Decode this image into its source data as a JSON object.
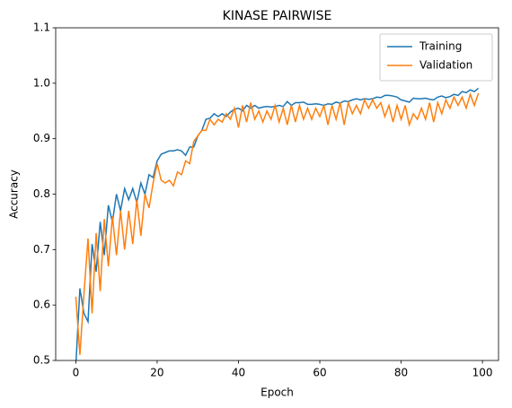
{
  "chart_data": {
    "type": "line",
    "title": "KINASE PAIRWISE",
    "xlabel": "Epoch",
    "ylabel": "Accuracy",
    "x": [
      0,
      1,
      2,
      3,
      4,
      5,
      6,
      7,
      8,
      9,
      10,
      11,
      12,
      13,
      14,
      15,
      16,
      17,
      18,
      19,
      20,
      21,
      22,
      23,
      24,
      25,
      26,
      27,
      28,
      29,
      30,
      31,
      32,
      33,
      34,
      35,
      36,
      37,
      38,
      39,
      40,
      41,
      42,
      43,
      44,
      45,
      46,
      47,
      48,
      49,
      50,
      51,
      52,
      53,
      54,
      55,
      56,
      57,
      58,
      59,
      60,
      61,
      62,
      63,
      64,
      65,
      66,
      67,
      68,
      69,
      70,
      71,
      72,
      73,
      74,
      75,
      76,
      77,
      78,
      79,
      80,
      81,
      82,
      83,
      84,
      85,
      86,
      87,
      88,
      89,
      90,
      91,
      92,
      93,
      94,
      95,
      96,
      97,
      98,
      99
    ],
    "series": [
      {
        "name": "Training",
        "color": "#1f77b4",
        "values": [
          0.49,
          0.63,
          0.585,
          0.57,
          0.71,
          0.66,
          0.75,
          0.69,
          0.78,
          0.75,
          0.8,
          0.77,
          0.81,
          0.79,
          0.81,
          0.785,
          0.82,
          0.8,
          0.835,
          0.83,
          0.86,
          0.872,
          0.875,
          0.878,
          0.878,
          0.88,
          0.878,
          0.87,
          0.885,
          0.885,
          0.905,
          0.915,
          0.935,
          0.937,
          0.945,
          0.94,
          0.945,
          0.94,
          0.948,
          0.953,
          0.955,
          0.95,
          0.96,
          0.955,
          0.96,
          0.955,
          0.957,
          0.958,
          0.957,
          0.958,
          0.96,
          0.958,
          0.967,
          0.96,
          0.965,
          0.965,
          0.966,
          0.962,
          0.962,
          0.963,
          0.962,
          0.96,
          0.963,
          0.962,
          0.966,
          0.964,
          0.968,
          0.967,
          0.97,
          0.972,
          0.97,
          0.972,
          0.971,
          0.972,
          0.975,
          0.974,
          0.978,
          0.978,
          0.977,
          0.975,
          0.97,
          0.968,
          0.966,
          0.973,
          0.972,
          0.972,
          0.973,
          0.971,
          0.97,
          0.975,
          0.977,
          0.974,
          0.976,
          0.98,
          0.978,
          0.985,
          0.983,
          0.988,
          0.985,
          0.991
        ]
      },
      {
        "name": "Validation",
        "color": "#ff7f0e",
        "values": [
          0.615,
          0.51,
          0.62,
          0.72,
          0.585,
          0.73,
          0.625,
          0.755,
          0.67,
          0.76,
          0.69,
          0.77,
          0.7,
          0.77,
          0.71,
          0.79,
          0.725,
          0.8,
          0.775,
          0.82,
          0.855,
          0.825,
          0.82,
          0.825,
          0.815,
          0.84,
          0.835,
          0.86,
          0.855,
          0.895,
          0.905,
          0.915,
          0.915,
          0.935,
          0.925,
          0.935,
          0.93,
          0.945,
          0.935,
          0.955,
          0.92,
          0.96,
          0.93,
          0.965,
          0.935,
          0.95,
          0.93,
          0.95,
          0.935,
          0.96,
          0.93,
          0.955,
          0.925,
          0.96,
          0.93,
          0.96,
          0.935,
          0.955,
          0.935,
          0.955,
          0.94,
          0.96,
          0.925,
          0.96,
          0.935,
          0.965,
          0.925,
          0.965,
          0.945,
          0.96,
          0.945,
          0.97,
          0.955,
          0.97,
          0.955,
          0.965,
          0.94,
          0.96,
          0.93,
          0.96,
          0.935,
          0.96,
          0.925,
          0.945,
          0.935,
          0.955,
          0.935,
          0.965,
          0.93,
          0.965,
          0.945,
          0.97,
          0.955,
          0.975,
          0.96,
          0.975,
          0.955,
          0.98,
          0.96,
          0.982
        ]
      }
    ],
    "xlim": [
      -4.95,
      103.95
    ],
    "xticks": [
      0,
      20,
      40,
      60,
      80,
      100
    ],
    "ylim": [
      0.5,
      1.1
    ],
    "yticks": [
      0.5,
      0.6,
      0.7,
      0.8,
      0.9,
      {
        "value": 1,
        "label": "1.0"
      },
      1.1
    ],
    "legend": "upper right",
    "grid": false
  }
}
